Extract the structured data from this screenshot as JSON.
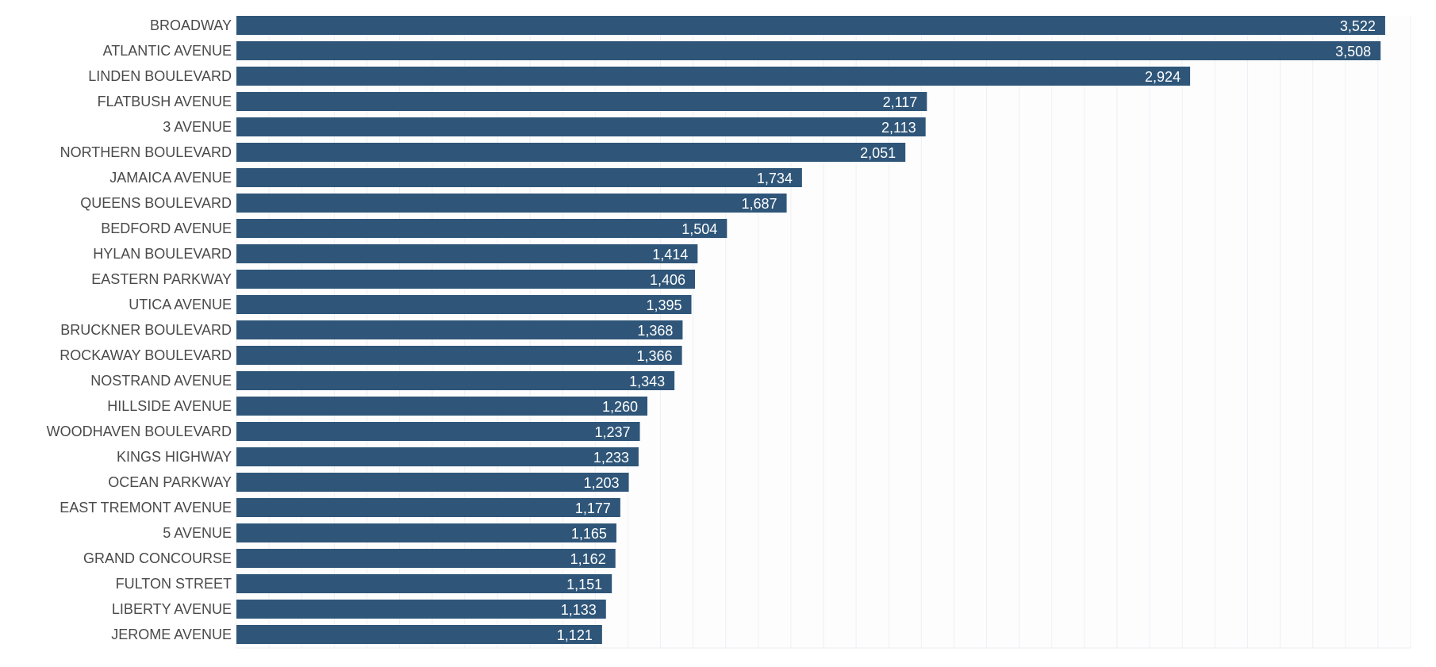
{
  "chart_data": {
    "type": "bar",
    "orientation": "horizontal",
    "title": "",
    "xlabel": "",
    "ylabel": "",
    "xlim": [
      0,
      3600
    ],
    "grid": true,
    "bar_color": "#2f5679",
    "categories": [
      "BROADWAY",
      "ATLANTIC AVENUE",
      "LINDEN BOULEVARD",
      "FLATBUSH AVENUE",
      "3 AVENUE",
      "NORTHERN BOULEVARD",
      "JAMAICA AVENUE",
      "QUEENS BOULEVARD",
      "BEDFORD AVENUE",
      "HYLAN BOULEVARD",
      "EASTERN PARKWAY",
      "UTICA AVENUE",
      "BRUCKNER BOULEVARD",
      "ROCKAWAY BOULEVARD",
      "NOSTRAND AVENUE",
      "HILLSIDE AVENUE",
      "WOODHAVEN BOULEVARD",
      "KINGS HIGHWAY",
      "OCEAN PARKWAY",
      "EAST TREMONT AVENUE",
      "5 AVENUE",
      "GRAND CONCOURSE",
      "FULTON STREET",
      "LIBERTY AVENUE",
      "JEROME AVENUE"
    ],
    "values": [
      3522,
      3508,
      2924,
      2117,
      2113,
      2051,
      1734,
      1687,
      1504,
      1414,
      1406,
      1395,
      1368,
      1366,
      1343,
      1260,
      1237,
      1233,
      1203,
      1177,
      1165,
      1162,
      1151,
      1133,
      1121
    ],
    "value_labels": [
      "3,522",
      "3,508",
      "2,924",
      "2,117",
      "2,113",
      "2,051",
      "1,734",
      "1,687",
      "1,504",
      "1,414",
      "1,406",
      "1,395",
      "1,368",
      "1,366",
      "1,343",
      "1,260",
      "1,237",
      "1,233",
      "1,203",
      "1,177",
      "1,165",
      "1,162",
      "1,151",
      "1,133",
      "1,121"
    ]
  }
}
